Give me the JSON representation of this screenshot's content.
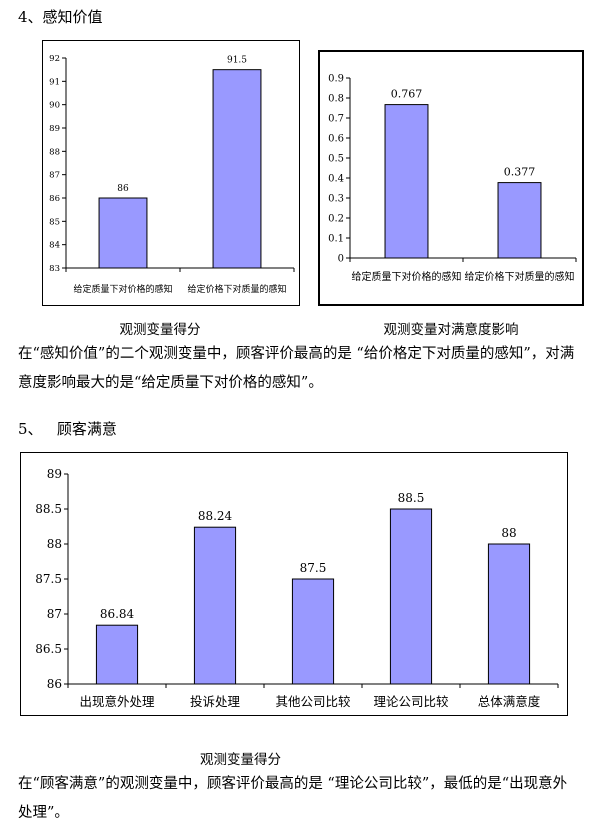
{
  "section4": {
    "heading": "4、感知价值",
    "paragraph": "在“感知价值”的二个观测变量中，顾客评价最高的是 “给价格定下对质量的感知”，对满意度影响最大的是“给定质量下对价格的感知”。"
  },
  "section5": {
    "heading": "5、   顾客满意",
    "paragraph": "在“顾客满意”的观测变量中，顾客评价最高的是 “理论公司比较”，最低的是“出现意外处理”。"
  },
  "colors": {
    "bar": "#9999ff",
    "bar_stroke": "#000000",
    "frame": "#000000",
    "chart_bg": "#ffffff"
  },
  "chart_data": [
    {
      "type": "bar",
      "caption": "观测变量得分",
      "categories": [
        "给定质量下对价格的感知",
        "给定价格下对质量的感知"
      ],
      "values": [
        86,
        91.5
      ],
      "value_labels": [
        "86",
        "91.5"
      ],
      "ylim": [
        83,
        92
      ],
      "yticks": [
        "83",
        "84",
        "85",
        "86",
        "87",
        "88",
        "89",
        "90",
        "91",
        "92"
      ],
      "grid": false,
      "legend": "none"
    },
    {
      "type": "bar",
      "caption": "观测变量对满意度影响",
      "categories": [
        "给定质量下对价格的感知",
        "给定价格下对质量的感知"
      ],
      "values": [
        0.767,
        0.377
      ],
      "value_labels": [
        "0.767",
        "0.377"
      ],
      "ylim": [
        0,
        0.9
      ],
      "yticks": [
        "0",
        "0.1",
        "0.2",
        "0.3",
        "0.4",
        "0.5",
        "0.6",
        "0.7",
        "0.8",
        "0.9"
      ],
      "grid": false,
      "legend": "none"
    },
    {
      "type": "bar",
      "caption": "观测变量得分",
      "categories": [
        "出现意外处理",
        "投诉处理",
        "其他公司比较",
        "理论公司比较",
        "总体满意度"
      ],
      "values": [
        86.84,
        88.24,
        87.5,
        88.5,
        88
      ],
      "value_labels": [
        "86.84",
        "88.24",
        "87.5",
        "88.5",
        "88"
      ],
      "ylim": [
        86,
        89
      ],
      "yticks": [
        "86",
        "86.5",
        "87",
        "87.5",
        "88",
        "88.5",
        "89"
      ],
      "grid": false,
      "legend": "none"
    }
  ]
}
